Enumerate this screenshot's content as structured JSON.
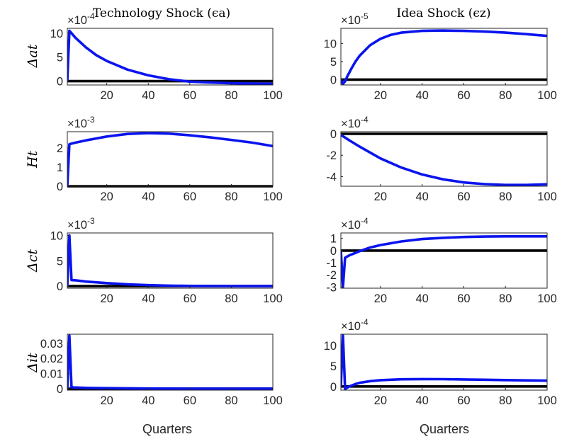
{
  "colors": {
    "response": "#0a14ee",
    "zero_line": "#000000",
    "axis": "#262626"
  },
  "column_titles": [
    "Technology Shock (ϵa)",
    "Idea Shock (ϵz)"
  ],
  "xlabel": "Quarters",
  "row_labels": [
    "Δat",
    "Ht",
    "Δct",
    "Δit"
  ],
  "chart_data": [
    {
      "type": "line",
      "ylabel": "Δat",
      "title": "Technology Shock (ϵa)",
      "xlabel": "",
      "sci_exponent": "×10-4",
      "xlim": [
        1,
        100
      ],
      "ylim": [
        -0.8,
        11
      ],
      "xticks": [
        20,
        40,
        60,
        80,
        100
      ],
      "xtick_labels": [
        "20",
        "40",
        "60",
        "80",
        "100"
      ],
      "yticks": [
        0,
        5,
        10
      ],
      "ytick_labels": [
        "0",
        "5",
        "10"
      ],
      "series": [
        {
          "x": [
            1,
            2,
            5,
            10,
            15,
            20,
            30,
            40,
            50,
            60,
            70,
            80,
            90,
            100
          ],
          "y": [
            0,
            10.5,
            9.0,
            7.0,
            5.4,
            4.2,
            2.4,
            1.2,
            0.4,
            -0.1,
            -0.3,
            -0.45,
            -0.5,
            -0.55
          ]
        },
        {
          "x": [
            1,
            100
          ],
          "y": [
            0,
            0
          ]
        }
      ]
    },
    {
      "type": "line",
      "ylabel": "",
      "title": "Idea Shock (ϵz)",
      "xlabel": "",
      "sci_exponent": "×10-5",
      "xlim": [
        1,
        100
      ],
      "ylim": [
        -1.5,
        14.2
      ],
      "xticks": [
        20,
        40,
        60,
        80,
        100
      ],
      "xtick_labels": [
        "20",
        "40",
        "60",
        "80",
        "100"
      ],
      "yticks": [
        0,
        5,
        10
      ],
      "ytick_labels": [
        "0",
        "5",
        "10"
      ],
      "series": [
        {
          "x": [
            1,
            2,
            3,
            4,
            6,
            8,
            10,
            15,
            20,
            25,
            30,
            40,
            50,
            60,
            70,
            80,
            90,
            100
          ],
          "y": [
            0,
            -1.2,
            -0.5,
            0.8,
            3.0,
            5.0,
            6.6,
            9.5,
            11.3,
            12.4,
            13.0,
            13.5,
            13.6,
            13.5,
            13.3,
            13.0,
            12.6,
            12.1
          ]
        },
        {
          "x": [
            1,
            100
          ],
          "y": [
            0,
            0
          ]
        }
      ]
    },
    {
      "type": "line",
      "ylabel": "Ht",
      "title": "",
      "xlabel": "",
      "sci_exponent": "×10-3",
      "xlim": [
        1,
        100
      ],
      "ylim": [
        0,
        2.85
      ],
      "xticks": [
        20,
        40,
        60,
        80,
        100
      ],
      "xtick_labels": [
        "20",
        "40",
        "60",
        "80",
        "100"
      ],
      "yticks": [
        0,
        1,
        2
      ],
      "ytick_labels": [
        "0",
        "1",
        "2"
      ],
      "series": [
        {
          "x": [
            1,
            2,
            5,
            10,
            20,
            30,
            40,
            50,
            60,
            70,
            80,
            90,
            100
          ],
          "y": [
            0,
            2.2,
            2.28,
            2.4,
            2.6,
            2.73,
            2.78,
            2.75,
            2.66,
            2.55,
            2.42,
            2.28,
            2.1
          ]
        },
        {
          "x": [
            1,
            100
          ],
          "y": [
            0,
            0
          ]
        }
      ]
    },
    {
      "type": "line",
      "ylabel": "",
      "title": "",
      "xlabel": "",
      "sci_exponent": "×10-4",
      "xlim": [
        1,
        100
      ],
      "ylim": [
        -4.9,
        0.2
      ],
      "xticks": [
        20,
        40,
        60,
        80,
        100
      ],
      "xtick_labels": [
        "20",
        "40",
        "60",
        "80",
        "100"
      ],
      "yticks": [
        -4,
        -2,
        0
      ],
      "ytick_labels": [
        "-4",
        "-2",
        "0"
      ],
      "series": [
        {
          "x": [
            1,
            5,
            10,
            20,
            30,
            40,
            50,
            60,
            70,
            80,
            90,
            100
          ],
          "y": [
            -0.1,
            -0.6,
            -1.2,
            -2.3,
            -3.15,
            -3.8,
            -4.25,
            -4.55,
            -4.7,
            -4.78,
            -4.78,
            -4.72
          ]
        },
        {
          "x": [
            1,
            100
          ],
          "y": [
            0,
            0
          ]
        }
      ]
    },
    {
      "type": "line",
      "ylabel": "Δct",
      "title": "",
      "xlabel": "",
      "sci_exponent": "×10-3",
      "xlim": [
        1,
        100
      ],
      "ylim": [
        -0.4,
        10.5
      ],
      "xticks": [
        20,
        40,
        60,
        80,
        100
      ],
      "xtick_labels": [
        "20",
        "40",
        "60",
        "80",
        "100"
      ],
      "yticks": [
        0,
        5,
        10
      ],
      "ytick_labels": [
        "0",
        "5",
        "10"
      ],
      "series": [
        {
          "x": [
            1,
            2,
            3,
            5,
            10,
            20,
            30,
            40,
            50,
            60,
            80,
            100
          ],
          "y": [
            0,
            10.0,
            1.2,
            1.15,
            0.9,
            0.6,
            0.35,
            0.2,
            0.1,
            0.05,
            0.0,
            0.0
          ]
        },
        {
          "x": [
            1,
            100
          ],
          "y": [
            0,
            0
          ]
        }
      ]
    },
    {
      "type": "line",
      "ylabel": "",
      "title": "",
      "xlabel": "",
      "sci_exponent": "×10-4",
      "xlim": [
        1,
        100
      ],
      "ylim": [
        -3.1,
        1.45
      ],
      "xticks": [
        20,
        40,
        60,
        80,
        100
      ],
      "xtick_labels": [
        "20",
        "40",
        "60",
        "80",
        "100"
      ],
      "yticks": [
        -3,
        -2,
        -1,
        0,
        1
      ],
      "ytick_labels": [
        "-3",
        "-2",
        "-1",
        "0",
        "1"
      ],
      "series": [
        {
          "x": [
            1,
            2,
            3,
            5,
            10,
            15,
            20,
            30,
            40,
            50,
            60,
            70,
            80,
            90,
            100
          ],
          "y": [
            0,
            -3.0,
            -0.6,
            -0.4,
            -0.05,
            0.25,
            0.45,
            0.75,
            0.95,
            1.05,
            1.12,
            1.15,
            1.17,
            1.17,
            1.17
          ]
        },
        {
          "x": [
            1,
            100
          ],
          "y": [
            0,
            0
          ]
        }
      ]
    },
    {
      "type": "line",
      "ylabel": "Δit",
      "title": "",
      "xlabel": "Quarters",
      "sci_exponent": "",
      "xlim": [
        1,
        100
      ],
      "ylim": [
        -0.001,
        0.036
      ],
      "xticks": [
        20,
        40,
        60,
        80,
        100
      ],
      "xtick_labels": [
        "20",
        "40",
        "60",
        "80",
        "100"
      ],
      "yticks": [
        0,
        0.01,
        0.02,
        0.03
      ],
      "ytick_labels": [
        "0",
        "0.01",
        "0.02",
        "0.03"
      ],
      "series": [
        {
          "x": [
            1,
            2,
            3,
            4,
            10,
            20,
            40,
            60,
            100
          ],
          "y": [
            0,
            0.035,
            0.001,
            0.0008,
            0.0005,
            0.0003,
            0.0001,
            0.0,
            0.0
          ]
        },
        {
          "x": [
            1,
            100
          ],
          "y": [
            0,
            0
          ]
        }
      ]
    },
    {
      "type": "line",
      "ylabel": "",
      "title": "",
      "xlabel": "Quarters",
      "sci_exponent": "×10-4",
      "xlim": [
        1,
        100
      ],
      "ylim": [
        -0.9,
        12.8
      ],
      "xticks": [
        20,
        40,
        60,
        80,
        100
      ],
      "xtick_labels": [
        "20",
        "40",
        "60",
        "80",
        "100"
      ],
      "yticks": [
        0,
        5,
        10
      ],
      "ytick_labels": [
        "0",
        "5",
        "10"
      ],
      "series": [
        {
          "x": [
            1,
            2,
            3,
            5,
            8,
            10,
            15,
            20,
            30,
            40,
            50,
            60,
            70,
            80,
            90,
            100
          ],
          "y": [
            0,
            12.5,
            -0.6,
            0.0,
            0.6,
            0.9,
            1.3,
            1.55,
            1.75,
            1.8,
            1.78,
            1.72,
            1.65,
            1.57,
            1.5,
            1.42
          ]
        },
        {
          "x": [
            1,
            100
          ],
          "y": [
            0,
            0
          ]
        }
      ]
    }
  ]
}
